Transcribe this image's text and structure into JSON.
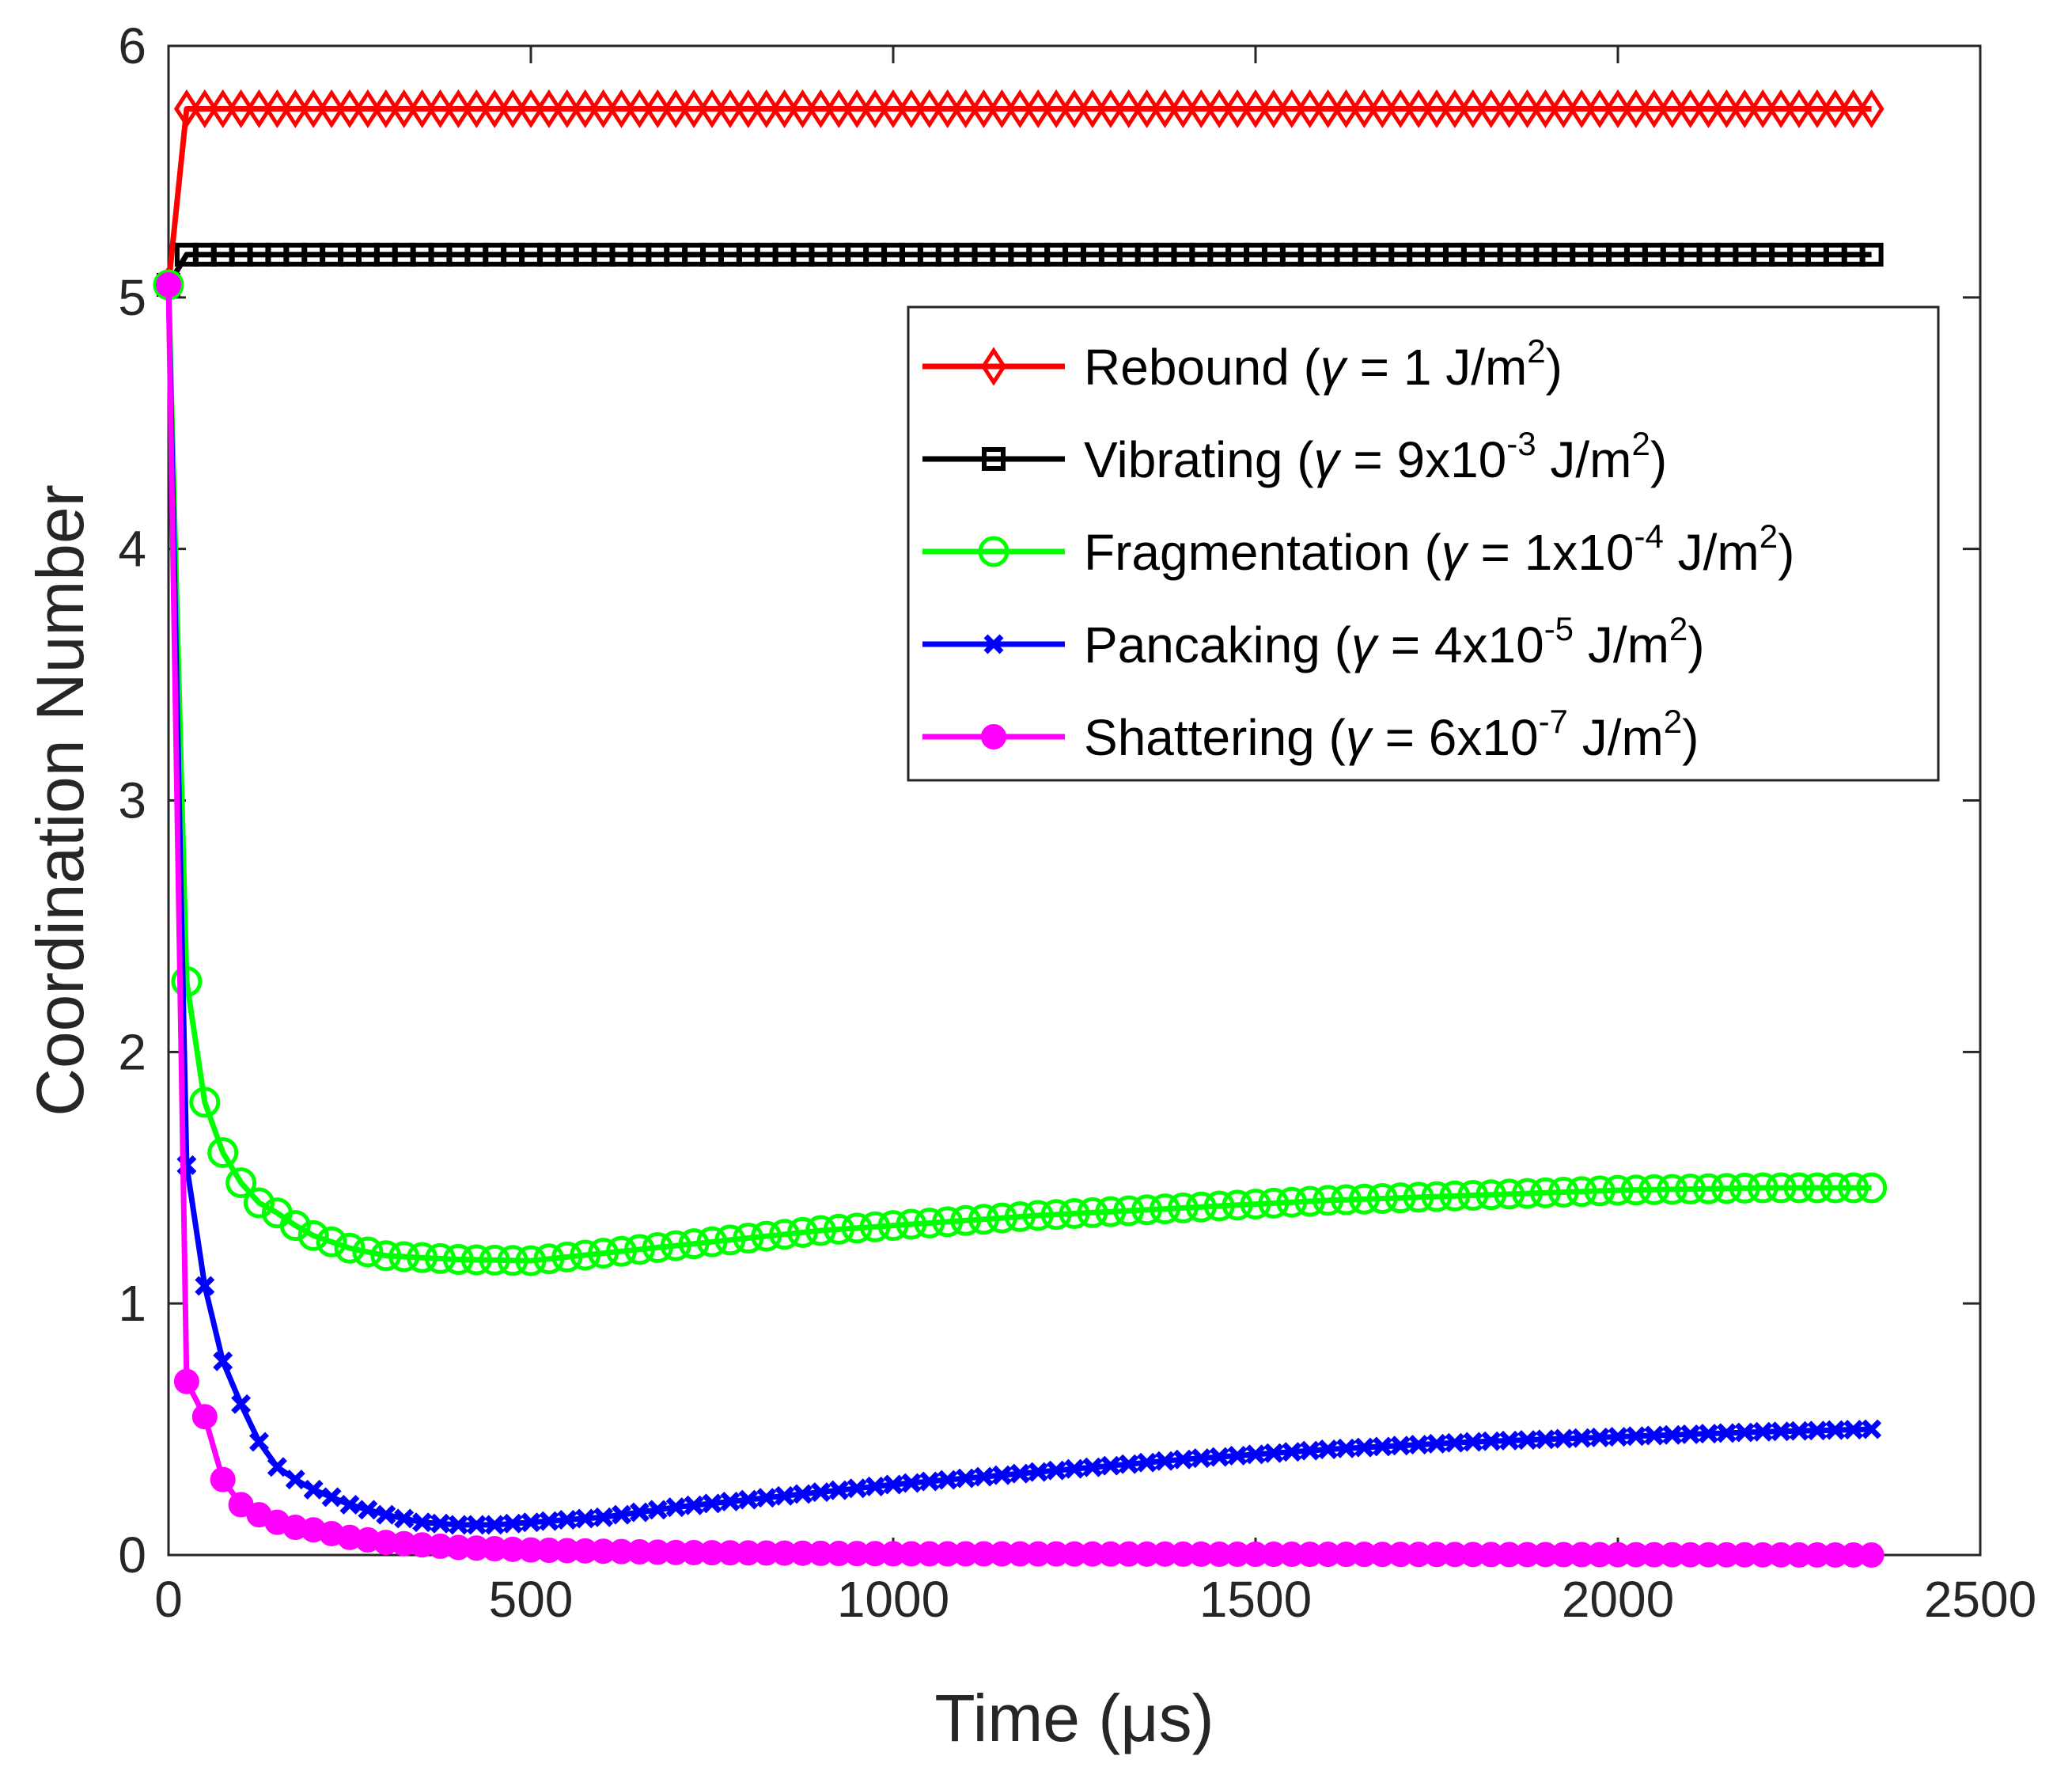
{
  "chart_data": {
    "type": "line",
    "title": "",
    "xlabel": "Time (μs)",
    "ylabel": "Coordination Number",
    "xlim": [
      0,
      2500
    ],
    "ylim": [
      0,
      6
    ],
    "xticks": [
      0,
      500,
      1000,
      1500,
      2000,
      2500
    ],
    "yticks": [
      0,
      1,
      2,
      3,
      4,
      5,
      6
    ],
    "xtick_labels": [
      "0",
      "500",
      "1000",
      "1500",
      "2000",
      "2500"
    ],
    "ytick_labels": [
      "0",
      "1",
      "2",
      "3",
      "4",
      "5",
      "6"
    ],
    "grid": false,
    "legend_position": "top-right",
    "sample_interval": 25,
    "series": [
      {
        "name": "Rebound",
        "legend_prefix": "Rebound (",
        "legend_mid": " = 1 J/m",
        "legend_exp": "2",
        "legend_suffix": ")",
        "color": "#ff0000",
        "marker": "diamond",
        "points": [
          [
            0,
            5.05
          ],
          [
            25,
            5.75
          ],
          [
            2350,
            5.75
          ]
        ]
      },
      {
        "name": "Vibrating",
        "legend_prefix": "Vibrating (",
        "legend_mid": " = 9x10",
        "legend_exp": "-3",
        "legend_mid2": " J/m",
        "legend_exp2": "2",
        "legend_suffix": ")",
        "color": "#000000",
        "marker": "square",
        "points": [
          [
            0,
            5.05
          ],
          [
            25,
            5.17
          ],
          [
            2350,
            5.17
          ]
        ]
      },
      {
        "name": "Fragmentation",
        "legend_prefix": "Fragmentation (",
        "legend_mid": " = 1x10",
        "legend_exp": "-4",
        "legend_mid2": " J/m",
        "legend_exp2": "2",
        "legend_suffix": ")",
        "color": "#00ff00",
        "marker": "circle",
        "points": [
          [
            0,
            5.05
          ],
          [
            25,
            2.28
          ],
          [
            50,
            1.8
          ],
          [
            75,
            1.6
          ],
          [
            100,
            1.48
          ],
          [
            125,
            1.4
          ],
          [
            150,
            1.36
          ],
          [
            175,
            1.31
          ],
          [
            200,
            1.27
          ],
          [
            250,
            1.22
          ],
          [
            300,
            1.19
          ],
          [
            400,
            1.175
          ],
          [
            500,
            1.17
          ],
          [
            600,
            1.2
          ],
          [
            700,
            1.23
          ],
          [
            800,
            1.26
          ],
          [
            900,
            1.29
          ],
          [
            1000,
            1.31
          ],
          [
            1200,
            1.35
          ],
          [
            1400,
            1.38
          ],
          [
            1600,
            1.41
          ],
          [
            1800,
            1.43
          ],
          [
            2000,
            1.45
          ],
          [
            2200,
            1.46
          ],
          [
            2350,
            1.46
          ]
        ]
      },
      {
        "name": "Pancaking",
        "legend_prefix": "Pancaking (",
        "legend_mid": " = 4x10",
        "legend_exp": "-5",
        "legend_mid2": " J/m",
        "legend_exp2": "2",
        "legend_suffix": ")",
        "color": "#0000ff",
        "marker": "x",
        "points": [
          [
            0,
            5.05
          ],
          [
            25,
            1.55
          ],
          [
            50,
            1.07
          ],
          [
            75,
            0.77
          ],
          [
            100,
            0.6
          ],
          [
            125,
            0.45
          ],
          [
            150,
            0.35
          ],
          [
            175,
            0.3
          ],
          [
            200,
            0.26
          ],
          [
            250,
            0.2
          ],
          [
            300,
            0.16
          ],
          [
            350,
            0.13
          ],
          [
            400,
            0.12
          ],
          [
            450,
            0.12
          ],
          [
            500,
            0.13
          ],
          [
            600,
            0.15
          ],
          [
            700,
            0.19
          ],
          [
            800,
            0.22
          ],
          [
            900,
            0.25
          ],
          [
            1000,
            0.28
          ],
          [
            1200,
            0.33
          ],
          [
            1400,
            0.38
          ],
          [
            1600,
            0.42
          ],
          [
            1800,
            0.45
          ],
          [
            2000,
            0.47
          ],
          [
            2200,
            0.49
          ],
          [
            2350,
            0.5
          ]
        ]
      },
      {
        "name": "Shattering",
        "legend_prefix": "Shattering (",
        "legend_mid": " = 6x10",
        "legend_exp": "-7",
        "legend_mid2": " J/m",
        "legend_exp2": "2",
        "legend_suffix": ")",
        "color": "#ff00ff",
        "marker": "dot",
        "points": [
          [
            0,
            5.05
          ],
          [
            25,
            0.69
          ],
          [
            50,
            0.55
          ],
          [
            75,
            0.3
          ],
          [
            100,
            0.2
          ],
          [
            125,
            0.16
          ],
          [
            150,
            0.13
          ],
          [
            175,
            0.11
          ],
          [
            200,
            0.1
          ],
          [
            250,
            0.07
          ],
          [
            300,
            0.05
          ],
          [
            400,
            0.03
          ],
          [
            500,
            0.02
          ],
          [
            700,
            0.01
          ],
          [
            1000,
            0.005
          ],
          [
            2350,
            0.0
          ]
        ]
      }
    ]
  }
}
